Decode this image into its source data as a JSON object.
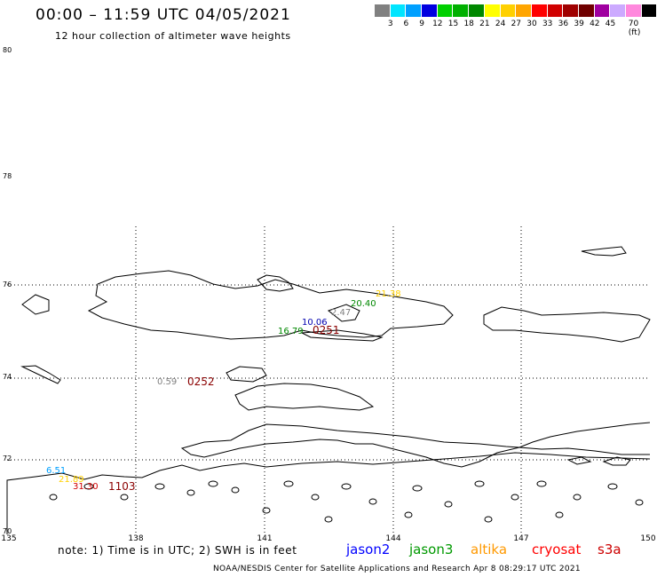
{
  "header": {
    "title": "00:00 – 11:59 UTC 04/05/2021",
    "subtitle": "12 hour collection of altimeter wave heights"
  },
  "legend": {
    "colors": [
      "#808080",
      "#00e5ff",
      "#00a0ff",
      "#0000e0",
      "#00d000",
      "#00b000",
      "#008800",
      "#ffff00",
      "#ffd000",
      "#ffa500",
      "#ff0000",
      "#d00000",
      "#a00000",
      "#700000",
      "#a000a0",
      "#ccaaff",
      "#ff88dd",
      "#000000"
    ],
    "labels": [
      "3",
      "6",
      "9",
      "12",
      "15",
      "18",
      "21",
      "24",
      "27",
      "30",
      "33",
      "36",
      "39",
      "42",
      "45",
      "70 (ft)"
    ]
  },
  "axes": {
    "lat_labels": [
      "80",
      "78",
      "76",
      "74",
      "72",
      "70"
    ],
    "lon_labels": [
      "135",
      "138",
      "141",
      "144",
      "147",
      "150"
    ]
  },
  "observations": [
    {
      "value": "0.59",
      "color": "#808080"
    },
    {
      "value": "20.40",
      "color": "#008800"
    },
    {
      "value": "21.38",
      "color": "#ffd000"
    },
    {
      "value": "10.06",
      "color": "#0000b0"
    },
    {
      "value": "2.47",
      "color": "#808080"
    },
    {
      "value": "16.79",
      "color": "#008800"
    },
    {
      "value": "6.51",
      "color": "#00a0ff"
    },
    {
      "value": "21.89",
      "color": "#ffd000"
    },
    {
      "value": "31.30",
      "color": "#d00000"
    }
  ],
  "pass_times": [
    "0251",
    "0252",
    "1103"
  ],
  "footer": {
    "note": "note:  1) Time is in UTC;  2) SWH is in feet",
    "satellites": [
      {
        "name": "jason2",
        "color": "#0000ff"
      },
      {
        "name": "jason3",
        "color": "#009900"
      },
      {
        "name": "altika",
        "color": "#ff9900"
      },
      {
        "name": "cryosat",
        "color": "#ff0000"
      },
      {
        "name": "s3a",
        "color": "#cc0000"
      }
    ],
    "credit": "NOAA/NESDIS Center for Satellite Applications and Research    Apr  8 08:29:17 UTC 2021"
  }
}
